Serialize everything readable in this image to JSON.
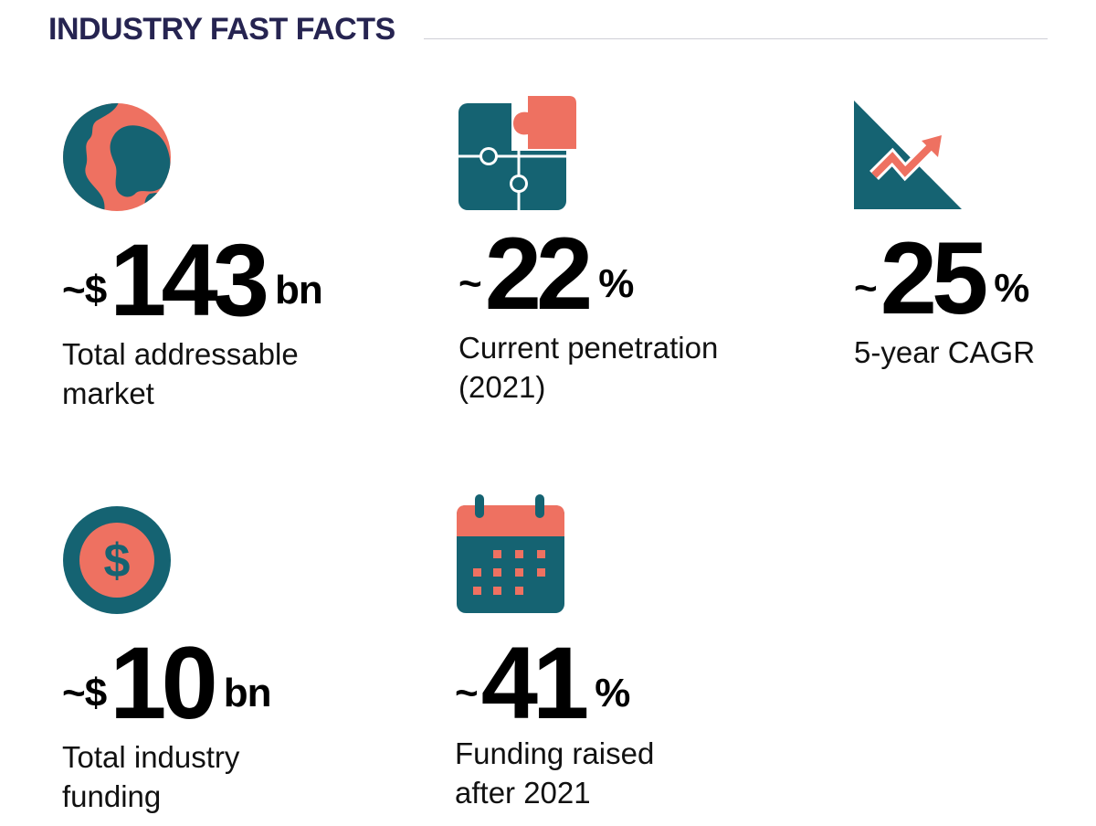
{
  "header": {
    "title": "INDUSTRY FAST FACTS"
  },
  "colors": {
    "teal": "#156372",
    "coral": "#EE7161",
    "navy": "#262451"
  },
  "facts": [
    {
      "icon": "globe-icon",
      "prefix": "~$",
      "number": "143",
      "unit": "bn",
      "label_lines": [
        "Total addressable",
        "market"
      ]
    },
    {
      "icon": "puzzle-icon",
      "prefix": "~",
      "number": "22",
      "unit": "%",
      "label_lines": [
        "Current penetration",
        "(2021)"
      ]
    },
    {
      "icon": "growth-chart-icon",
      "prefix": "~",
      "number": "25",
      "unit": "%",
      "label_lines": [
        "5-year CAGR"
      ]
    },
    {
      "icon": "dollar-coin-icon",
      "prefix": "~$",
      "number": "10",
      "unit": "bn",
      "label_lines": [
        "Total industry",
        "funding"
      ]
    },
    {
      "icon": "calendar-icon",
      "prefix": "~",
      "number": "41",
      "unit": "%",
      "label_lines": [
        "Funding raised",
        "after 2021"
      ]
    }
  ]
}
